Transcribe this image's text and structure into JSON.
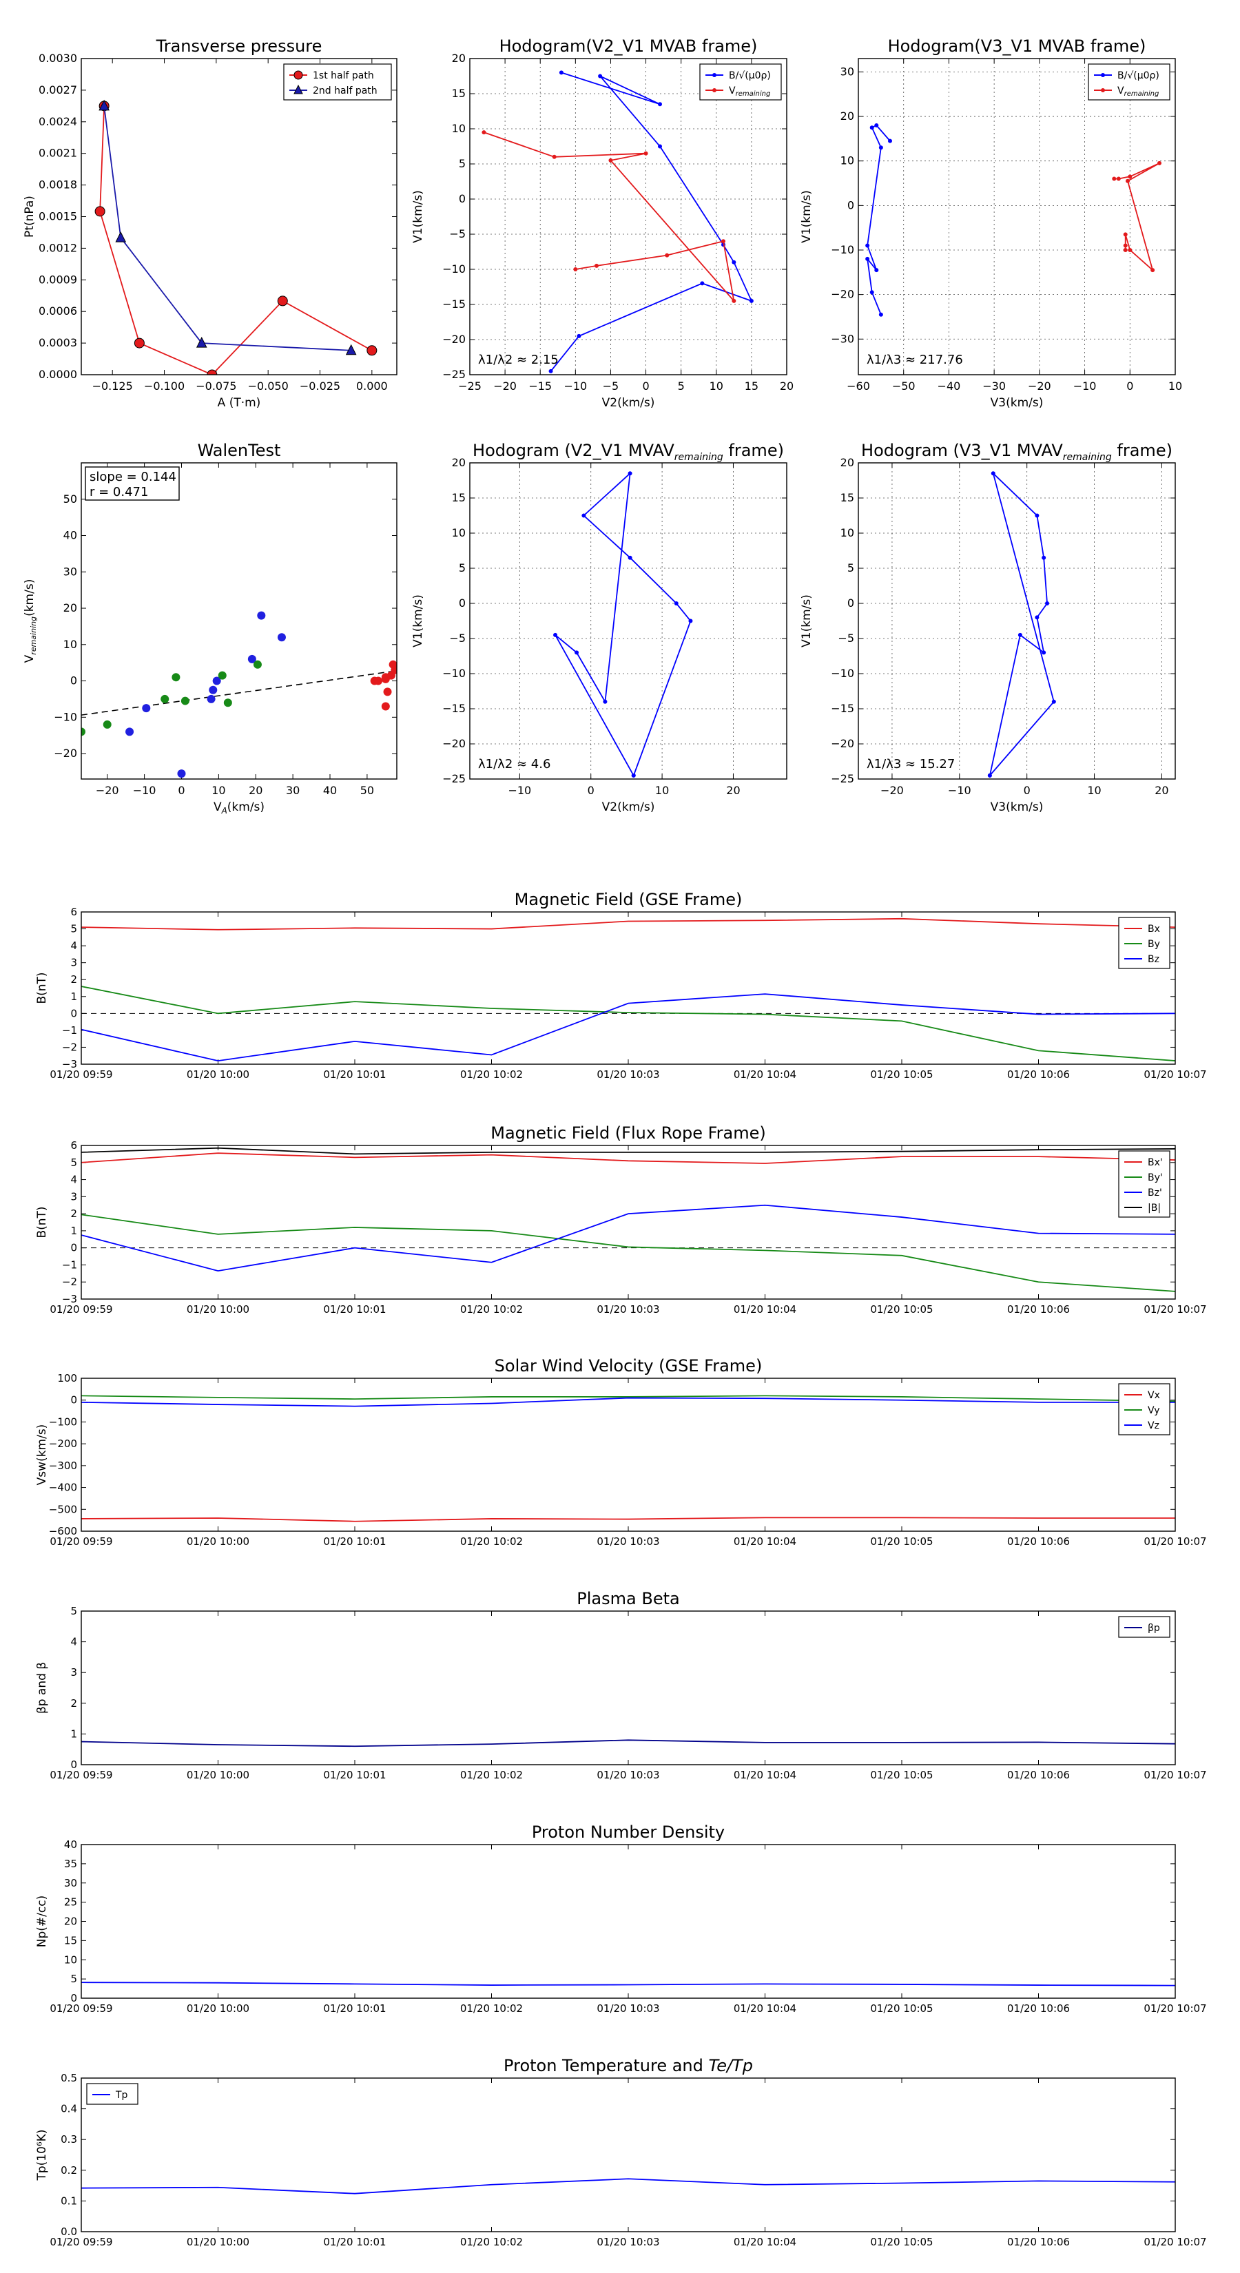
{
  "chart_data": [
    {
      "id": "transverse-pressure",
      "type": "line",
      "title": "Transverse pressure",
      "xlabel": "A (T·m)",
      "ylabel": "Pt(nPa)",
      "xlim": [
        -0.14,
        0.012
      ],
      "ylim": [
        0,
        0.003
      ],
      "xticks": [
        -0.125,
        -0.1,
        -0.075,
        -0.05,
        -0.025,
        0.0
      ],
      "xticklabels": [
        "−0.125",
        "−0.100",
        "−0.075",
        "−0.050",
        "−0.025",
        "0.000"
      ],
      "yticks": [
        0,
        0.0003,
        0.0006,
        0.0009,
        0.0012,
        0.0015,
        0.0018,
        0.0021,
        0.0024,
        0.0027,
        0.003
      ],
      "yticklabels": [
        "0.0000",
        "0.0003",
        "0.0006",
        "0.0009",
        "0.0012",
        "0.0015",
        "0.0018",
        "0.0021",
        "0.0024",
        "0.0027",
        "0.0030"
      ],
      "grid": false,
      "legend": "upper right",
      "series": [
        {
          "name": "1st half path",
          "color": "#e31a1c",
          "marker": "circle",
          "x": [
            -0.129,
            -0.131,
            -0.112,
            -0.077,
            -0.043,
            0.0
          ],
          "y": [
            0.00255,
            0.00155,
            0.0003,
            0.0,
            0.0007,
            0.00023
          ]
        },
        {
          "name": "2nd half path",
          "color": "#1a1aaa",
          "marker": "triangle",
          "x": [
            -0.129,
            -0.121,
            -0.082,
            -0.01
          ],
          "y": [
            0.00255,
            0.0013,
            0.0003,
            0.00023
          ]
        }
      ]
    },
    {
      "id": "hodo-v2-mvab",
      "type": "line",
      "title": "Hodogram(V2_V1 MVAB frame)",
      "xlabel": "V2(km/s)",
      "ylabel": "V1(km/s)",
      "xlim": [
        -25,
        20
      ],
      "ylim": [
        -25,
        20
      ],
      "xticks": [
        -25,
        -20,
        -15,
        -10,
        -5,
        0,
        5,
        10,
        15,
        20
      ],
      "yticks": [
        -25,
        -20,
        -15,
        -10,
        -5,
        0,
        5,
        10,
        15,
        20
      ],
      "grid": true,
      "legend": "upper right",
      "annotation": "λ1/λ2 ≈ 2.15",
      "series": [
        {
          "name": "B/√(μ0ρ)",
          "color": "#0000ff",
          "x": [
            -13.5,
            -9.5,
            8,
            15,
            12.5,
            11,
            2,
            -6.5,
            2,
            -12
          ],
          "y": [
            -24.5,
            -19.5,
            -12,
            -14.5,
            -9,
            -6.5,
            7.5,
            17.5,
            13.5,
            18
          ]
        },
        {
          "name": "V_remaining",
          "color": "#e31a1c",
          "x": [
            -10,
            -7,
            3,
            11,
            12.5,
            -5,
            0,
            -13,
            -23
          ],
          "y": [
            -10,
            -9.5,
            -8,
            -6,
            -14.5,
            5.5,
            6.5,
            6,
            9.5
          ]
        }
      ]
    },
    {
      "id": "hodo-v3-mvab",
      "type": "line",
      "title": "Hodogram(V3_V1 MVAB frame)",
      "xlabel": "V3(km/s)",
      "ylabel": "V1(km/s)",
      "xlim": [
        -60,
        10
      ],
      "ylim": [
        -38,
        33
      ],
      "xticks": [
        -60,
        -50,
        -40,
        -30,
        -20,
        -10,
        0,
        10
      ],
      "yticks": [
        -30,
        -20,
        -10,
        0,
        10,
        20,
        30
      ],
      "grid": true,
      "legend": "upper right",
      "annotation": "λ1/λ3 ≈ 217.76",
      "series": [
        {
          "name": "B/√(μ0ρ)",
          "color": "#0000ff",
          "x": [
            -55,
            -57,
            -58,
            -56,
            -58,
            -55,
            -57,
            -56,
            -53
          ],
          "y": [
            -24.5,
            -19.5,
            -12,
            -14.5,
            -9,
            13,
            17.5,
            18,
            14.5
          ]
        },
        {
          "name": "V_remaining",
          "color": "#e31a1c",
          "x": [
            -1,
            -1,
            -1,
            0,
            5,
            -0.5,
            6.5,
            0,
            -2.5,
            -3.5
          ],
          "y": [
            -10,
            -9,
            -6.5,
            -10,
            -14.5,
            5.5,
            9.5,
            6.5,
            6,
            6
          ]
        }
      ]
    },
    {
      "id": "walen-test",
      "type": "scatter",
      "title": "WalenTest",
      "xlabel": "V_A(km/s)",
      "ylabel": "V_remaining(km/s)",
      "xlim": [
        -27,
        58
      ],
      "ylim": [
        -27,
        60
      ],
      "xticks": [
        -20,
        -10,
        0,
        10,
        20,
        30,
        40,
        50
      ],
      "yticks": [
        -20,
        -10,
        0,
        10,
        20,
        30,
        40,
        50
      ],
      "grid": false,
      "annotation_lines": [
        "slope = 0.144",
        "r = 0.471"
      ],
      "fit_line": {
        "x": [
          -27,
          58
        ],
        "y": [
          -9.4,
          2.8
        ]
      },
      "series": [
        {
          "color": "#2020e0",
          "x": [
            0,
            -14,
            -9.5,
            8,
            8.5,
            9.5,
            19,
            27,
            21.5
          ],
          "y": [
            -25.5,
            -14,
            -7.5,
            -5,
            -2.5,
            0,
            6,
            12,
            18
          ]
        },
        {
          "color": "#178a17",
          "x": [
            -27,
            -20,
            -4.5,
            1,
            -1.5,
            11,
            12.5,
            20.5
          ],
          "y": [
            -14,
            -12,
            -5,
            -5.5,
            1,
            1.5,
            -6,
            4.5
          ]
        },
        {
          "color": "#e31a1c",
          "x": [
            52,
            53,
            55,
            55,
            56.5,
            57,
            57.5,
            55.5,
            55
          ],
          "y": [
            0,
            0,
            0.5,
            1,
            1.5,
            4.5,
            3,
            -3,
            -7
          ]
        }
      ]
    },
    {
      "id": "hodo-v2-mvav",
      "type": "line",
      "title": "Hodogram (V2_V1 MVAV_remaining frame)",
      "xlabel": "V2(km/s)",
      "ylabel": "V1(km/s)",
      "xlim": [
        -17,
        27.5
      ],
      "ylim": [
        -25,
        20
      ],
      "xticks": [
        -10,
        0,
        10,
        20
      ],
      "yticks": [
        -25,
        -20,
        -15,
        -10,
        -5,
        0,
        5,
        10,
        15,
        20
      ],
      "grid": true,
      "annotation": "λ1/λ2 ≈ 4.6",
      "series": [
        {
          "color": "#0000ff",
          "x": [
            6,
            -5,
            -2,
            2,
            5.5,
            -1,
            5.5,
            12,
            14,
            6
          ],
          "y": [
            -24.5,
            -4.5,
            -7,
            -14,
            18.5,
            12.5,
            6.5,
            0,
            -2.5,
            -24.5
          ]
        }
      ]
    },
    {
      "id": "hodo-v3-mvav",
      "type": "line",
      "title": "Hodogram (V3_V1 MVAV_remaining frame)",
      "xlabel": "V3(km/s)",
      "ylabel": "V1(km/s)",
      "xlim": [
        -25,
        22
      ],
      "ylim": [
        -25,
        20
      ],
      "xticks": [
        -20,
        -10,
        0,
        10,
        20
      ],
      "yticks": [
        -25,
        -20,
        -15,
        -10,
        -5,
        0,
        5,
        10,
        15,
        20
      ],
      "grid": true,
      "annotation": "λ1/λ3 ≈ 15.27",
      "series": [
        {
          "color": "#0000ff",
          "x": [
            -5.5,
            -1,
            2.5,
            1.5,
            3,
            2.5,
            1.5,
            -5,
            4,
            -5.5
          ],
          "y": [
            -24.5,
            -4.5,
            -7,
            -2,
            0,
            6.5,
            12.5,
            18.5,
            -14,
            -24.5
          ]
        }
      ]
    },
    {
      "id": "mag-gse",
      "type": "line",
      "title": "Magnetic Field (GSE Frame)",
      "ylabel": "B(nT)",
      "ylim": [
        -3,
        6
      ],
      "yticks": [
        -3,
        -2,
        -1,
        0,
        1,
        2,
        3,
        4,
        5,
        6
      ],
      "xticklabels": [
        "01/20 09:59",
        "01/20 10:00",
        "01/20 10:01",
        "01/20 10:02",
        "01/20 10:03",
        "01/20 10:04",
        "01/20 10:05",
        "01/20 10:06",
        "01/20 10:07"
      ],
      "zero_line": true,
      "legend": "upper right",
      "series": [
        {
          "name": "Bx",
          "color": "#e31a1c",
          "values": [
            5.1,
            4.95,
            5.05,
            5.0,
            5.45,
            5.5,
            5.6,
            5.3,
            5.1
          ]
        },
        {
          "name": "By",
          "color": "#178a17",
          "values": [
            1.6,
            0.0,
            0.7,
            0.3,
            0.05,
            -0.05,
            -0.45,
            -2.2,
            -2.8
          ]
        },
        {
          "name": "Bz",
          "color": "#0000ff",
          "values": [
            -0.95,
            -2.8,
            -1.65,
            -2.45,
            0.6,
            1.15,
            0.5,
            -0.05,
            0.0
          ]
        }
      ]
    },
    {
      "id": "mag-fluxrope",
      "type": "line",
      "title": "Magnetic Field (Flux Rope Frame)",
      "ylabel": "B(nT)",
      "ylim": [
        -3,
        6
      ],
      "yticks": [
        -3,
        -2,
        -1,
        0,
        1,
        2,
        3,
        4,
        5,
        6
      ],
      "xticklabels": [
        "01/20 09:59",
        "01/20 10:00",
        "01/20 10:01",
        "01/20 10:02",
        "01/20 10:03",
        "01/20 10:04",
        "01/20 10:05",
        "01/20 10:06",
        "01/20 10:07"
      ],
      "zero_line": true,
      "legend": "upper right",
      "series": [
        {
          "name": "Bx'",
          "color": "#e31a1c",
          "values": [
            5.0,
            5.55,
            5.3,
            5.45,
            5.1,
            4.95,
            5.35,
            5.35,
            5.15
          ]
        },
        {
          "name": "By'",
          "color": "#178a17",
          "values": [
            1.95,
            0.8,
            1.2,
            1.0,
            0.05,
            -0.15,
            -0.45,
            -2.0,
            -2.55
          ]
        },
        {
          "name": "Bz'",
          "color": "#0000ff",
          "values": [
            0.75,
            -1.35,
            0.0,
            -0.85,
            2.0,
            2.5,
            1.8,
            0.85,
            0.8
          ]
        },
        {
          "name": "|B|",
          "color": "#000000",
          "values": [
            5.6,
            5.85,
            5.5,
            5.6,
            5.6,
            5.6,
            5.65,
            5.75,
            5.8
          ]
        }
      ]
    },
    {
      "id": "sw-velocity",
      "type": "line",
      "title": "Solar Wind Velocity (GSE Frame)",
      "ylabel": "Vsw(km/s)",
      "ylim": [
        -600,
        100
      ],
      "yticks": [
        -600,
        -500,
        -400,
        -300,
        -200,
        -100,
        0,
        100
      ],
      "xticklabels": [
        "01/20 09:59",
        "01/20 10:00",
        "01/20 10:01",
        "01/20 10:02",
        "01/20 10:03",
        "01/20 10:04",
        "01/20 10:05",
        "01/20 10:06",
        "01/20 10:07"
      ],
      "legend": "upper right",
      "series": [
        {
          "name": "Vx",
          "color": "#e31a1c",
          "values": [
            -543,
            -540,
            -555,
            -543,
            -545,
            -538,
            -538,
            -540,
            -540
          ]
        },
        {
          "name": "Vy",
          "color": "#178a17",
          "values": [
            20,
            12,
            5,
            15,
            15,
            20,
            15,
            5,
            -5
          ]
        },
        {
          "name": "Vz",
          "color": "#0000ff",
          "values": [
            -10,
            -20,
            -28,
            -15,
            10,
            8,
            0,
            -10,
            -10
          ]
        }
      ]
    },
    {
      "id": "plasma-beta",
      "type": "line",
      "title": "Plasma Beta",
      "ylabel": "βp and β",
      "ylim": [
        0,
        5
      ],
      "yticks": [
        0,
        1,
        2,
        3,
        4,
        5
      ],
      "xticklabels": [
        "01/20 09:59",
        "01/20 10:00",
        "01/20 10:01",
        "01/20 10:02",
        "01/20 10:03",
        "01/20 10:04",
        "01/20 10:05",
        "01/20 10:06",
        "01/20 10:07"
      ],
      "legend": "upper right",
      "series": [
        {
          "name": "βp",
          "color": "#00008b",
          "values": [
            0.75,
            0.65,
            0.6,
            0.67,
            0.8,
            0.72,
            0.72,
            0.73,
            0.68
          ]
        }
      ]
    },
    {
      "id": "proton-density",
      "type": "line",
      "title": "Proton Number Density",
      "ylabel": "Np(#/cc)",
      "ylim": [
        0,
        40
      ],
      "yticks": [
        0,
        5,
        10,
        15,
        20,
        25,
        30,
        35,
        40
      ],
      "xticklabels": [
        "01/20 09:59",
        "01/20 10:00",
        "01/20 10:01",
        "01/20 10:02",
        "01/20 10:03",
        "01/20 10:04",
        "01/20 10:05",
        "01/20 10:06",
        "01/20 10:07"
      ],
      "series": [
        {
          "color": "#0000ff",
          "values": [
            4.1,
            4.0,
            3.7,
            3.4,
            3.5,
            3.7,
            3.6,
            3.4,
            3.3
          ]
        }
      ]
    },
    {
      "id": "proton-temp",
      "type": "line",
      "title": "Proton Temperature and Te/Tp",
      "ylabel": "Tp(10⁶K)",
      "ylim": [
        0,
        0.5
      ],
      "yticks": [
        0,
        0.1,
        0.2,
        0.3,
        0.4,
        0.5
      ],
      "yticklabels": [
        "0.0",
        "0.1",
        "0.2",
        "0.3",
        "0.4",
        "0.5"
      ],
      "xticklabels": [
        "01/20 09:59",
        "01/20 10:00",
        "01/20 10:01",
        "01/20 10:02",
        "01/20 10:03",
        "01/20 10:04",
        "01/20 10:05",
        "01/20 10:06",
        "01/20 10:07"
      ],
      "legend": "upper left",
      "series": [
        {
          "name": "Tp",
          "color": "#0000ff",
          "values": [
            0.142,
            0.144,
            0.124,
            0.153,
            0.172,
            0.153,
            0.158,
            0.165,
            0.162
          ]
        }
      ]
    }
  ]
}
